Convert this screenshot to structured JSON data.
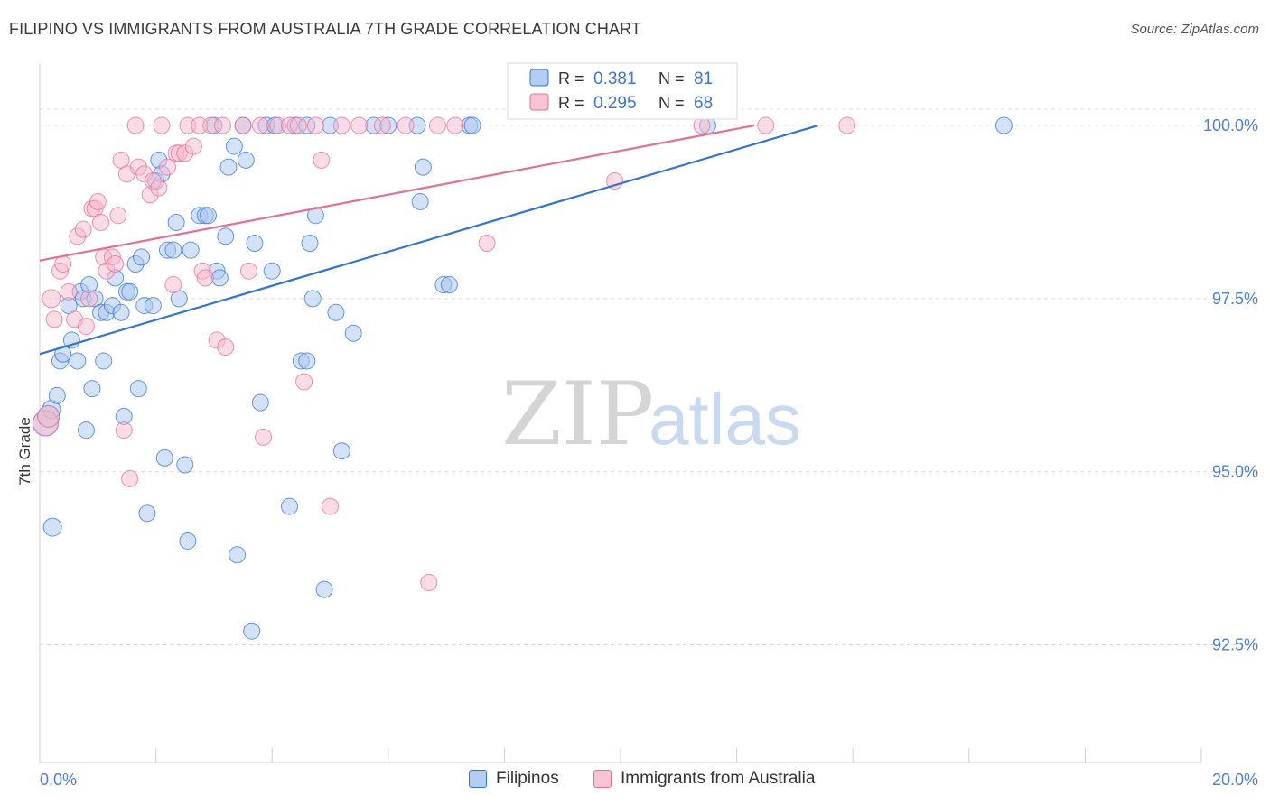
{
  "header": {
    "title": "FILIPINO VS IMMIGRANTS FROM AUSTRALIA 7TH GRADE CORRELATION CHART",
    "source": "Source: ZipAtlas.com"
  },
  "watermark": {
    "zip": "ZIP",
    "atlas": "atlas"
  },
  "colors": {
    "blue": "#3474d0",
    "blue_fill": "#a9c6f1",
    "pink": "#e36e96",
    "pink_fill": "#f6b9cd",
    "tick_label": "#4f7fcf",
    "grid": "#dcdcdc"
  },
  "legend_box": {
    "rows": [
      {
        "r_label": "R =",
        "r_value": "0.381",
        "n_label": "N =",
        "n_value": "81"
      },
      {
        "r_label": "R =",
        "r_value": "0.295",
        "n_label": "N =",
        "n_value": "68"
      }
    ]
  },
  "bottom_legend": {
    "series1": "Filipinos",
    "series2": "Immigrants from Australia"
  },
  "chart_data": {
    "type": "scatter",
    "ylabel": "7th Grade",
    "xlim": [
      0,
      20
    ],
    "ylim": [
      90.8,
      100.9
    ],
    "x_tick_labels": [
      "0.0%",
      "20.0%"
    ],
    "y_ticks": [
      92.5,
      95.0,
      97.5,
      100.0
    ],
    "y_tick_labels": [
      "92.5%",
      "95.0%",
      "97.5%",
      "100.0%"
    ],
    "grid": true,
    "series": [
      {
        "name": "Filipinos",
        "color": "blue",
        "trend": {
          "x": [
            0.0,
            13.4
          ],
          "y": [
            96.7,
            100.0
          ]
        },
        "points": [
          [
            0.1,
            95.7,
            14
          ],
          [
            0.15,
            95.8,
            12
          ],
          [
            0.2,
            95.9,
            10
          ],
          [
            0.22,
            94.2,
            10
          ],
          [
            0.3,
            96.1,
            9
          ],
          [
            0.35,
            96.6,
            9
          ],
          [
            0.4,
            96.7,
            9
          ],
          [
            0.5,
            97.4,
            9
          ],
          [
            0.55,
            96.9,
            9
          ],
          [
            0.65,
            96.6,
            9
          ],
          [
            0.7,
            97.6,
            9
          ],
          [
            0.75,
            97.5,
            9
          ],
          [
            0.8,
            95.6,
            9
          ],
          [
            0.85,
            97.7,
            9
          ],
          [
            0.9,
            96.2,
            9
          ],
          [
            0.95,
            97.5,
            9
          ],
          [
            1.05,
            97.3,
            9
          ],
          [
            1.1,
            96.6,
            9
          ],
          [
            1.15,
            97.3,
            9
          ],
          [
            1.25,
            97.4,
            9
          ],
          [
            1.3,
            97.8,
            9
          ],
          [
            1.4,
            97.3,
            9
          ],
          [
            1.45,
            95.8,
            9
          ],
          [
            1.5,
            97.6,
            9
          ],
          [
            1.55,
            97.6,
            9
          ],
          [
            1.65,
            98.0,
            9
          ],
          [
            1.7,
            96.2,
            9
          ],
          [
            1.75,
            98.1,
            9
          ],
          [
            1.8,
            97.4,
            9
          ],
          [
            1.85,
            94.4,
            9
          ],
          [
            1.95,
            97.4,
            9
          ],
          [
            2.0,
            99.2,
            9
          ],
          [
            2.05,
            99.5,
            9
          ],
          [
            2.1,
            99.3,
            9
          ],
          [
            2.15,
            95.2,
            9
          ],
          [
            2.2,
            98.2,
            9
          ],
          [
            2.3,
            98.2,
            9
          ],
          [
            2.35,
            98.6,
            9
          ],
          [
            2.4,
            97.5,
            9
          ],
          [
            2.5,
            95.1,
            9
          ],
          [
            2.55,
            94.0,
            9
          ],
          [
            2.6,
            98.2,
            9
          ],
          [
            2.75,
            98.7,
            9
          ],
          [
            2.85,
            98.7,
            9
          ],
          [
            2.9,
            98.7,
            9
          ],
          [
            3.0,
            100.0,
            9
          ],
          [
            3.05,
            97.9,
            9
          ],
          [
            3.1,
            97.8,
            9
          ],
          [
            3.2,
            98.4,
            9
          ],
          [
            3.25,
            99.4,
            9
          ],
          [
            3.35,
            99.7,
            9
          ],
          [
            3.4,
            93.8,
            9
          ],
          [
            3.5,
            100.0,
            9
          ],
          [
            3.55,
            99.5,
            9
          ],
          [
            3.65,
            92.7,
            9
          ],
          [
            3.7,
            98.3,
            9
          ],
          [
            3.8,
            96.0,
            9
          ],
          [
            3.9,
            100.0,
            9
          ],
          [
            4.0,
            97.9,
            9
          ],
          [
            4.05,
            100.0,
            9
          ],
          [
            4.3,
            94.5,
            9
          ],
          [
            4.4,
            100.0,
            9
          ],
          [
            4.5,
            96.6,
            9
          ],
          [
            4.6,
            96.6,
            9
          ],
          [
            4.65,
            98.3,
            9
          ],
          [
            4.7,
            97.5,
            9
          ],
          [
            4.75,
            98.7,
            9
          ],
          [
            4.6,
            100.0,
            9
          ],
          [
            4.9,
            93.3,
            9
          ],
          [
            5.0,
            100.0,
            9
          ],
          [
            5.1,
            97.3,
            9
          ],
          [
            5.2,
            95.3,
            9
          ],
          [
            5.4,
            97.0,
            9
          ],
          [
            5.75,
            100.0,
            9
          ],
          [
            6.0,
            100.0,
            9
          ],
          [
            6.5,
            100.0,
            9
          ],
          [
            6.55,
            98.9,
            9
          ],
          [
            6.6,
            99.4,
            9
          ],
          [
            6.95,
            97.7,
            9
          ],
          [
            7.05,
            97.7,
            9
          ],
          [
            7.4,
            100.0,
            9
          ],
          [
            7.45,
            100.0,
            9
          ],
          [
            11.5,
            100.0,
            9
          ],
          [
            16.6,
            100.0,
            9
          ]
        ]
      },
      {
        "name": "Immigrants from Australia",
        "color": "pink",
        "trend": {
          "x": [
            0.0,
            12.3
          ],
          "y": [
            98.05,
            100.0
          ]
        },
        "points": [
          [
            0.1,
            95.7,
            14
          ],
          [
            0.15,
            95.8,
            12
          ],
          [
            0.2,
            97.5,
            10
          ],
          [
            0.25,
            97.2,
            9
          ],
          [
            0.35,
            97.9,
            9
          ],
          [
            0.4,
            98.0,
            9
          ],
          [
            0.5,
            97.6,
            9
          ],
          [
            0.6,
            97.2,
            9
          ],
          [
            0.65,
            98.4,
            9
          ],
          [
            0.75,
            98.5,
            9
          ],
          [
            0.8,
            97.1,
            9
          ],
          [
            0.85,
            97.5,
            9
          ],
          [
            0.9,
            98.8,
            9
          ],
          [
            0.95,
            98.8,
            9
          ],
          [
            1.0,
            98.9,
            9
          ],
          [
            1.05,
            98.6,
            9
          ],
          [
            1.1,
            98.1,
            9
          ],
          [
            1.15,
            97.9,
            9
          ],
          [
            1.25,
            98.1,
            9
          ],
          [
            1.3,
            98.0,
            9
          ],
          [
            1.35,
            98.7,
            9
          ],
          [
            1.4,
            99.5,
            9
          ],
          [
            1.45,
            95.6,
            9
          ],
          [
            1.5,
            99.3,
            9
          ],
          [
            1.55,
            94.9,
            9
          ],
          [
            1.65,
            100.0,
            9
          ],
          [
            1.7,
            99.4,
            9
          ],
          [
            1.8,
            99.3,
            9
          ],
          [
            1.9,
            99.0,
            9
          ],
          [
            1.95,
            99.2,
            9
          ],
          [
            2.05,
            99.1,
            9
          ],
          [
            2.1,
            100.0,
            9
          ],
          [
            2.2,
            99.4,
            9
          ],
          [
            2.3,
            97.7,
            9
          ],
          [
            2.35,
            99.6,
            9
          ],
          [
            2.4,
            99.6,
            9
          ],
          [
            2.5,
            99.6,
            9
          ],
          [
            2.55,
            100.0,
            9
          ],
          [
            2.65,
            99.7,
            9
          ],
          [
            2.75,
            100.0,
            9
          ],
          [
            2.8,
            97.9,
            9
          ],
          [
            2.85,
            97.8,
            9
          ],
          [
            2.95,
            100.0,
            9
          ],
          [
            3.05,
            96.9,
            9
          ],
          [
            3.15,
            100.0,
            9
          ],
          [
            3.2,
            96.8,
            9
          ],
          [
            3.5,
            100.0,
            9
          ],
          [
            3.6,
            97.9,
            9
          ],
          [
            3.8,
            100.0,
            9
          ],
          [
            3.85,
            95.5,
            9
          ],
          [
            4.1,
            100.0,
            9
          ],
          [
            4.3,
            100.0,
            9
          ],
          [
            4.45,
            100.0,
            9
          ],
          [
            4.55,
            96.3,
            9
          ],
          [
            4.75,
            100.0,
            9
          ],
          [
            4.85,
            99.5,
            9
          ],
          [
            5.0,
            94.5,
            9
          ],
          [
            5.2,
            100.0,
            9
          ],
          [
            5.5,
            100.0,
            9
          ],
          [
            5.9,
            100.0,
            9
          ],
          [
            6.3,
            100.0,
            9
          ],
          [
            6.7,
            93.4,
            9
          ],
          [
            6.85,
            100.0,
            9
          ],
          [
            7.15,
            100.0,
            9
          ],
          [
            7.7,
            98.3,
            9
          ],
          [
            9.9,
            99.2,
            9
          ],
          [
            11.4,
            100.0,
            9
          ],
          [
            12.5,
            100.0,
            9
          ],
          [
            13.9,
            100.0,
            9
          ]
        ]
      }
    ]
  }
}
